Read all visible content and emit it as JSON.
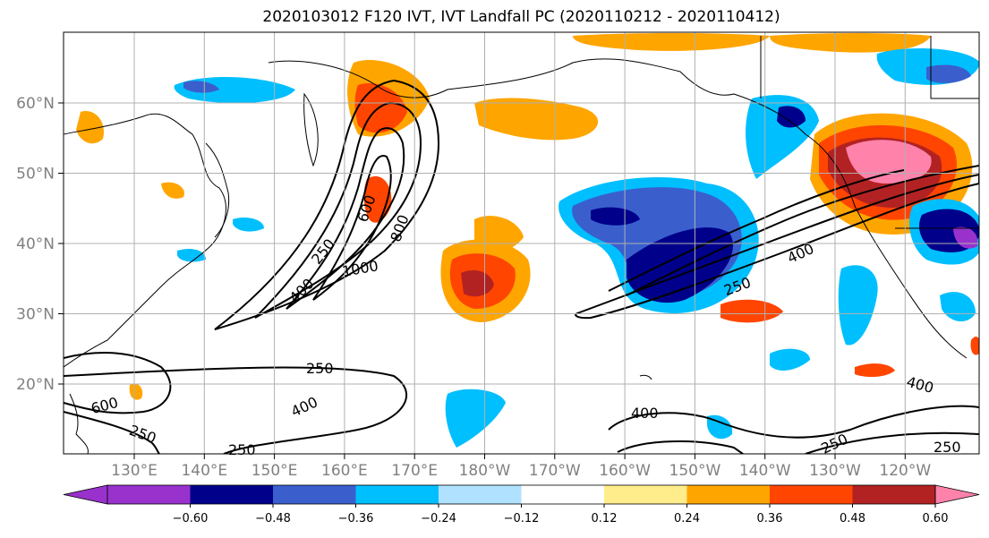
{
  "title": "2020103012 F120 IVT, IVT Landfall PC (2020110212 - 2020110412)",
  "map": {
    "lon_labels": [
      "130°E",
      "140°E",
      "150°E",
      "160°E",
      "170°E",
      "180°W",
      "170°W",
      "160°W",
      "150°W",
      "140°W",
      "130°W",
      "120°W"
    ],
    "lat_labels": [
      "20°N",
      "30°N",
      "40°N",
      "50°N",
      "60°N"
    ],
    "contour_labels": [
      "250",
      "400",
      "600",
      "800",
      "1000",
      "250",
      "400",
      "250",
      "400",
      "600",
      "250",
      "250",
      "400",
      "250",
      "250",
      "400"
    ]
  },
  "colorbar": {
    "colors": [
      "#9932cc",
      "#00008b",
      "#3a5fcd",
      "#00bfff",
      "#b0e2ff",
      "#ffffff",
      "#ffec8b",
      "#ffa500",
      "#ff4500",
      "#b22222",
      "#ff82ab"
    ],
    "tick_labels": [
      "−0.60",
      "−0.48",
      "−0.36",
      "−0.24",
      "−0.12",
      "0.12",
      "0.24",
      "0.36",
      "0.48",
      "0.60"
    ]
  }
}
